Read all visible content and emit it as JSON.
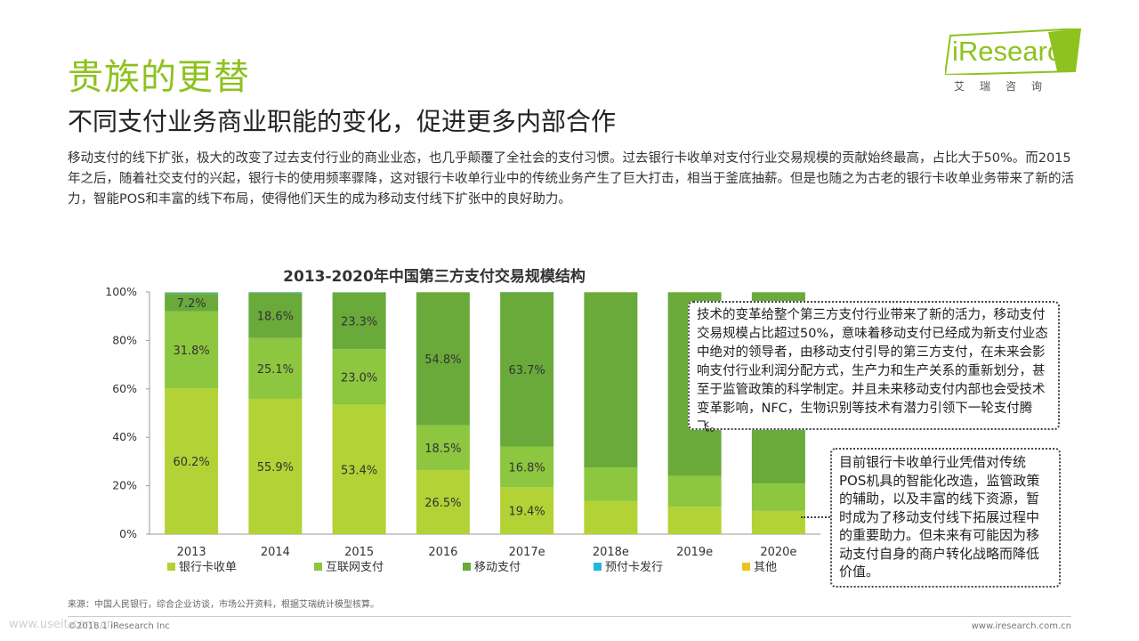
{
  "header": {
    "title": "贵族的更替",
    "subtitle": "不同支付业务商业职能的变化，促进更多内部合作",
    "intro": "移动支付的线下扩张，极大的改变了过去支付行业的商业业态，也几乎颠覆了全社会的支付习惯。过去银行卡收单对支付行业交易规模的贡献始终最高，占比大于50%。而2015年之后，随着社交支付的兴起，银行卡的使用频率骤降，这对银行卡收单行业中的传统业务产生了巨大打击，相当于釜底抽薪。但是也随之为古老的银行卡收单业务带来了新的活力，智能POS和丰富的线下布局，使得他们天生的成为移动支付线下扩张中的良好助力。"
  },
  "logo": {
    "text": "iResearch",
    "sub": "艾瑞咨询",
    "color": "#8dc21f"
  },
  "chart_data": {
    "type": "bar",
    "stacked": true,
    "title": "2013-2020年中国第三方支付交易规模结构",
    "categories": [
      "2013",
      "2014",
      "2015",
      "2016",
      "2017e",
      "2018e",
      "2019e",
      "2020e"
    ],
    "ylim": [
      0,
      100
    ],
    "yticks": [
      "0%",
      "20%",
      "40%",
      "60%",
      "80%",
      "100%"
    ],
    "legend_position": "bottom",
    "series": [
      {
        "name": "银行卡收单",
        "color": "#b2d235",
        "values": [
          60.2,
          55.9,
          53.4,
          26.5,
          19.4,
          13.8,
          11.3,
          9.6
        ],
        "labels": [
          "60.2%",
          "55.9%",
          "53.4%",
          "26.5%",
          "19.4%",
          "",
          "",
          ""
        ]
      },
      {
        "name": "互联网支付",
        "color": "#8dc63f",
        "values": [
          31.8,
          25.1,
          23.0,
          18.5,
          16.8,
          13.7,
          12.8,
          11.3
        ],
        "labels": [
          "31.8%",
          "25.1%",
          "23.0%",
          "18.5%",
          "16.8%",
          "",
          "",
          ""
        ]
      },
      {
        "name": "移动支付",
        "color": "#6aaa3a",
        "values": [
          7.2,
          18.6,
          23.3,
          54.8,
          63.7,
          72.3,
          75.7,
          78.9
        ],
        "labels": [
          "7.2%",
          "18.6%",
          "23.3%",
          "54.8%",
          "63.7%",
          "",
          "",
          ""
        ]
      },
      {
        "name": "预付卡发行",
        "color": "#1fb8d8",
        "values": [
          0.5,
          0.3,
          0.2,
          0.1,
          0.1,
          0.1,
          0.1,
          0.1
        ],
        "labels": [
          "",
          "",
          "",
          "",
          "",
          "",
          "",
          ""
        ]
      },
      {
        "name": "其他",
        "color": "#ecc21c",
        "values": [
          0.3,
          0.1,
          0.1,
          0.1,
          0.0,
          0.1,
          0.1,
          0.1
        ],
        "labels": [
          "",
          "",
          "",
          "",
          "",
          "",
          "",
          ""
        ]
      }
    ]
  },
  "callouts": {
    "c1": "技术的变革给整个第三方支付行业带来了新的活力，移动支付交易规模占比超过50%，意味着移动支付已经成为新支付业态中绝对的领导者，由移动支付引导的第三方支付，在未来会影响支付行业利润分配方式，生产力和生产关系的重新划分，甚至于监管政策的科学制定。并且未来移动支付内部也会受技术变革影响，NFC，生物识别等技术有潜力引领下一轮支付腾飞。",
    "c2": "目前银行卡收单行业凭借对传统POS机具的智能化改造，监管政策的辅助，以及丰富的线下资源，暂时成为了移动支付线下拓展过程中的重要助力。但未来有可能因为移动支付自身的商户转化战略而降低价值。"
  },
  "footer": {
    "source": "来源：中国人民银行，综合企业访谈，市场公开资料，根据艾瑞统计模型核算。",
    "copyright": "©2018.1 iResearch Inc",
    "website": "www.iresearch.com.cn",
    "watermark": "www.useit.com.cn"
  }
}
